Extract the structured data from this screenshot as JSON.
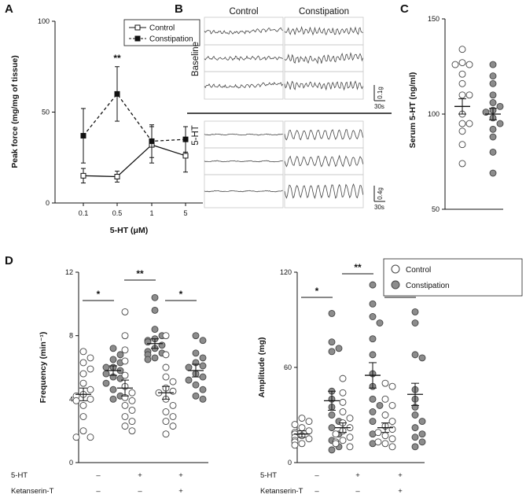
{
  "panels": {
    "a": "A",
    "b": "B",
    "c": "C",
    "d": "D"
  },
  "colors": {
    "control": "#ffffff",
    "constipation": "#8c8c8c",
    "line": "#111111",
    "trace": "#444444"
  },
  "chart_data": [
    {
      "id": "A",
      "type": "line",
      "title": "",
      "xlabel": "5-HT (μM)",
      "ylabel": "Peak force (mg/mg of tissue)",
      "categories": [
        "0.1",
        "0.5",
        "1",
        "5"
      ],
      "ylim": [
        0,
        100
      ],
      "yticks": [
        "0",
        "50",
        "100"
      ],
      "series": [
        {
          "name": "Control",
          "marker": "open-square",
          "linestyle": "solid",
          "values": [
            15,
            14.5,
            32,
            26
          ],
          "errors": [
            4,
            3,
            10,
            9
          ]
        },
        {
          "name": "Constipation",
          "marker": "filled-square",
          "linestyle": "dashed",
          "values": [
            37,
            60,
            34,
            35
          ],
          "errors": [
            15,
            15,
            9,
            7
          ]
        }
      ],
      "annotations": [
        {
          "category": "0.5",
          "text": "**"
        }
      ],
      "legend": "top-right"
    },
    {
      "id": "B",
      "type": "traces",
      "columns": [
        "Control",
        "Constipation"
      ],
      "groups": [
        {
          "label": "Baseline",
          "scale_y": "0.1g",
          "scale_x": "30s"
        },
        {
          "label": "5-HT",
          "scale_y": "0.4g",
          "scale_x": "30s"
        }
      ]
    },
    {
      "id": "C",
      "type": "scatter",
      "ylabel": "Serum 5-HT (ng/ml)",
      "ylim": [
        50,
        150
      ],
      "yticks": [
        "50",
        "100",
        "150"
      ],
      "groups": [
        {
          "name": "Control",
          "mean": 104,
          "sem": 4,
          "values": [
            134,
            127,
            126,
            126,
            121,
            116,
            110,
            110,
            100,
            95,
            95,
            91,
            84,
            74
          ]
        },
        {
          "name": "Constipation",
          "mean": 100,
          "sem": 3,
          "values": [
            126,
            120,
            116,
            110,
            106,
            104,
            102,
            101,
            98,
            95,
            92,
            88,
            80,
            69
          ]
        }
      ]
    },
    {
      "id": "D-frequency",
      "type": "scatter",
      "ylabel": "Frequency (min⁻¹)",
      "ylim": [
        0,
        12
      ],
      "yticks": [
        "0",
        "4",
        "8",
        "12"
      ],
      "groups": [
        {
          "name": "Control",
          "condition": 0,
          "mean": 4.3,
          "sem": 0.4,
          "values": [
            7.0,
            6.6,
            6.3,
            5.9,
            5.6,
            5.0,
            4.6,
            4.3,
            4.2,
            4.0,
            3.9,
            3.6,
            2.9,
            2.0,
            1.6,
            1.6
          ]
        },
        {
          "name": "Constipation",
          "condition": 0,
          "mean": 5.8,
          "sem": 0.3,
          "values": [
            7.2,
            6.8,
            6.5,
            6.3,
            6.0,
            6.0,
            5.8,
            5.6,
            5.4,
            5.3,
            5.0,
            4.6,
            4.2,
            4.0
          ]
        },
        {
          "name": "Control",
          "condition": 1,
          "mean": 4.7,
          "sem": 0.5,
          "values": [
            9.5,
            8.0,
            7.1,
            6.4,
            5.5,
            4.8,
            4.4,
            4.1,
            3.9,
            3.6,
            3.3,
            2.9,
            2.6,
            2.3,
            2.0
          ]
        },
        {
          "name": "Constipation",
          "condition": 1,
          "mean": 7.5,
          "sem": 0.3,
          "values": [
            10.4,
            9.6,
            8.4,
            8.0,
            7.8,
            7.7,
            7.6,
            7.4,
            7.2,
            7.0,
            6.9,
            6.8,
            6.6,
            6.5
          ]
        },
        {
          "name": "Control",
          "condition": 2,
          "mean": 4.4,
          "sem": 0.4,
          "values": [
            8.0,
            6.8,
            6.0,
            5.4,
            5.1,
            4.7,
            4.5,
            4.4,
            4.0,
            3.6,
            3.2,
            2.9,
            2.6,
            2.3,
            1.8
          ]
        },
        {
          "name": "Constipation",
          "condition": 2,
          "mean": 5.8,
          "sem": 0.4,
          "values": [
            8.0,
            7.7,
            6.9,
            6.6,
            6.3,
            6.1,
            6.0,
            5.6,
            5.4,
            5.2,
            4.9,
            4.6,
            4.2,
            4.0
          ]
        }
      ],
      "significance": [
        "*",
        "**",
        "*"
      ]
    },
    {
      "id": "D-amplitude",
      "type": "scatter",
      "ylabel": "Amplitude (mg)",
      "ylim": [
        0,
        120
      ],
      "yticks": [
        "0",
        "60",
        "120"
      ],
      "groups": [
        {
          "name": "Control",
          "condition": 0,
          "mean": 18,
          "sem": 2,
          "values": [
            28,
            26,
            24,
            22,
            20,
            19,
            18,
            17,
            16,
            15,
            14,
            13,
            12,
            11
          ]
        },
        {
          "name": "Constipation",
          "condition": 0,
          "mean": 39,
          "sem": 6,
          "values": [
            94,
            76,
            72,
            70,
            45,
            40,
            35,
            30,
            26,
            22,
            18,
            14,
            10,
            8
          ]
        },
        {
          "name": "Control",
          "condition": 1,
          "mean": 22,
          "sem": 3,
          "values": [
            53,
            44,
            38,
            32,
            28,
            25,
            22,
            20,
            18,
            16,
            14,
            13,
            12,
            10
          ]
        },
        {
          "name": "Constipation",
          "condition": 1,
          "mean": 55,
          "sem": 8,
          "values": [
            112,
            100,
            92,
            88,
            78,
            68,
            56,
            48,
            40,
            36,
            32,
            26,
            18,
            12
          ]
        },
        {
          "name": "Control",
          "condition": 2,
          "mean": 22,
          "sem": 3,
          "values": [
            50,
            48,
            40,
            36,
            30,
            26,
            23,
            21,
            19,
            17,
            15,
            13,
            12,
            10
          ]
        },
        {
          "name": "Constipation",
          "condition": 2,
          "mean": 43,
          "sem": 7,
          "values": [
            95,
            88,
            68,
            66,
            46,
            40,
            35,
            30,
            26,
            22,
            18,
            16,
            13,
            10
          ]
        }
      ],
      "significance": [
        "*",
        "**",
        "*"
      ]
    }
  ],
  "panelD": {
    "legend": [
      "Control",
      "Constipation"
    ],
    "rows": [
      {
        "label": "5-HT",
        "marks": [
          "–",
          "+",
          "+"
        ]
      },
      {
        "label": "Ketanserin-T",
        "marks": [
          "–",
          "–",
          "+"
        ]
      }
    ]
  }
}
